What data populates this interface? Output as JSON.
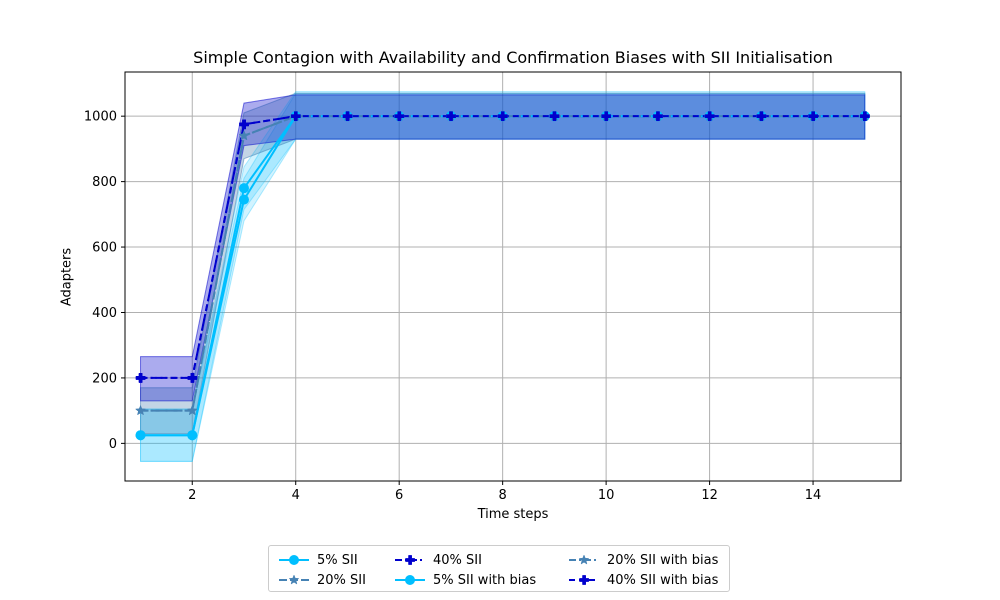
{
  "chart_data": {
    "type": "line",
    "title": "Simple Contagion with Availability and Confirmation Biases with SII Initialisation",
    "xlabel": "Time steps",
    "ylabel": "Adapters",
    "xlim": [
      0.7,
      15.7
    ],
    "ylim": [
      -115,
      1135
    ],
    "xticks": [
      2,
      4,
      6,
      8,
      10,
      12,
      14
    ],
    "yticks": [
      0,
      200,
      400,
      600,
      800,
      1000
    ],
    "grid": true,
    "legend_position": "below",
    "series": [
      {
        "name": "5% SII",
        "color": "#00bfff",
        "dash": "",
        "marker": "circle",
        "x": [
          1,
          2,
          3,
          4,
          5,
          6,
          7,
          8,
          9,
          10,
          11,
          12,
          13,
          14,
          15
        ],
        "values": [
          25,
          25,
          745,
          1000,
          1000,
          1000,
          1000,
          1000,
          1000,
          1000,
          1000,
          1000,
          1000,
          1000,
          1000
        ],
        "lower": [
          -55,
          -55,
          680,
          930,
          930,
          930,
          930,
          930,
          930,
          930,
          930,
          930,
          930,
          930,
          930
        ],
        "upper": [
          105,
          105,
          810,
          1070,
          1070,
          1070,
          1070,
          1070,
          1070,
          1070,
          1070,
          1070,
          1070,
          1070,
          1070
        ]
      },
      {
        "name": "20% SII",
        "color": "#4682b4",
        "dash": "8,3",
        "marker": "star",
        "x": [
          1,
          2,
          3,
          4,
          5,
          6,
          7,
          8,
          9,
          10,
          11,
          12,
          13,
          14,
          15
        ],
        "values": [
          100,
          100,
          940,
          1000,
          1000,
          1000,
          1000,
          1000,
          1000,
          1000,
          1000,
          1000,
          1000,
          1000,
          1000
        ],
        "lower": [
          30,
          30,
          870,
          930,
          930,
          930,
          930,
          930,
          930,
          930,
          930,
          930,
          930,
          930,
          930
        ],
        "upper": [
          170,
          170,
          1010,
          1070,
          1070,
          1070,
          1070,
          1070,
          1070,
          1070,
          1070,
          1070,
          1070,
          1070,
          1070
        ]
      },
      {
        "name": "40% SII",
        "color": "#0000cd",
        "dash": "7,3,2,3",
        "marker": "plus",
        "x": [
          1,
          2,
          3,
          4,
          5,
          6,
          7,
          8,
          9,
          10,
          11,
          12,
          13,
          14,
          15
        ],
        "values": [
          200,
          200,
          975,
          1000,
          1000,
          1000,
          1000,
          1000,
          1000,
          1000,
          1000,
          1000,
          1000,
          1000,
          1000
        ],
        "lower": [
          130,
          130,
          910,
          930,
          930,
          930,
          930,
          930,
          930,
          930,
          930,
          930,
          930,
          930,
          930
        ],
        "upper": [
          265,
          265,
          1040,
          1065,
          1065,
          1065,
          1065,
          1065,
          1065,
          1065,
          1065,
          1065,
          1065,
          1065,
          1065
        ]
      },
      {
        "name": "5% SII with bias",
        "color": "#00bfff",
        "dash": "",
        "marker": "circle",
        "x": [
          1,
          2,
          3,
          4,
          5,
          6,
          7,
          8,
          9,
          10,
          11,
          12,
          13,
          14,
          15
        ],
        "values": [
          25,
          25,
          780,
          1000,
          1000,
          1000,
          1000,
          1000,
          1000,
          1000,
          1000,
          1000,
          1000,
          1000,
          1000
        ],
        "lower": [
          -55,
          -55,
          715,
          930,
          930,
          930,
          930,
          930,
          930,
          930,
          930,
          930,
          930,
          930,
          930
        ],
        "upper": [
          105,
          105,
          845,
          1075,
          1075,
          1075,
          1075,
          1075,
          1075,
          1075,
          1075,
          1075,
          1075,
          1075,
          1075
        ]
      },
      {
        "name": "20% SII with bias",
        "color": "#4682b4",
        "dash": "7,3,2,3",
        "marker": "star",
        "x": [
          1,
          2,
          3,
          4,
          5,
          6,
          7,
          8,
          9,
          10,
          11,
          12,
          13,
          14,
          15
        ],
        "values": [
          100,
          100,
          940,
          1000,
          1000,
          1000,
          1000,
          1000,
          1000,
          1000,
          1000,
          1000,
          1000,
          1000,
          1000
        ],
        "lower": [
          30,
          30,
          870,
          930,
          930,
          930,
          930,
          930,
          930,
          930,
          930,
          930,
          930,
          930,
          930
        ],
        "upper": [
          170,
          170,
          1010,
          1070,
          1070,
          1070,
          1070,
          1070,
          1070,
          1070,
          1070,
          1070,
          1070,
          1070,
          1070
        ]
      },
      {
        "name": "40% SII with bias",
        "color": "#0000cd",
        "dash": "6,4",
        "marker": "plus",
        "x": [
          1,
          2,
          3,
          4,
          5,
          6,
          7,
          8,
          9,
          10,
          11,
          12,
          13,
          14,
          15
        ],
        "values": [
          200,
          200,
          975,
          1000,
          1000,
          1000,
          1000,
          1000,
          1000,
          1000,
          1000,
          1000,
          1000,
          1000,
          1000
        ],
        "lower": [
          130,
          130,
          910,
          930,
          930,
          930,
          930,
          930,
          930,
          930,
          930,
          930,
          930,
          930,
          930
        ],
        "upper": [
          265,
          265,
          1040,
          1065,
          1065,
          1065,
          1065,
          1065,
          1065,
          1065,
          1065,
          1065,
          1065,
          1065,
          1065
        ]
      }
    ]
  }
}
